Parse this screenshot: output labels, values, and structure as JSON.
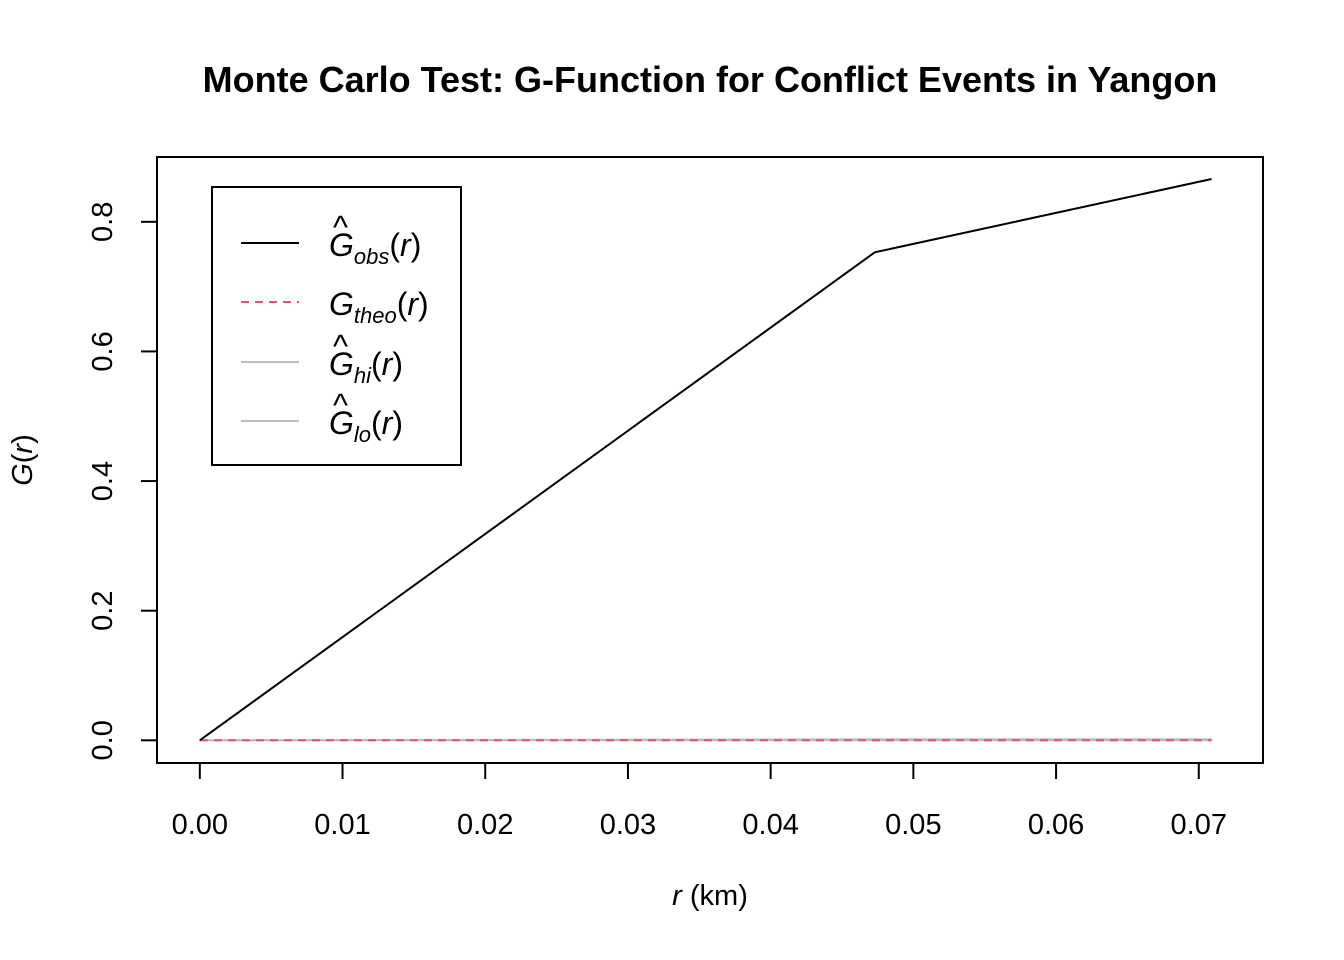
{
  "chart_data": {
    "type": "line",
    "title": "Monte Carlo Test: G-Function for Conflict Events in Yangon",
    "xlabel": {
      "var": "r",
      "unit": "(km)"
    },
    "ylabel": {
      "func": "G",
      "arg": "r"
    },
    "xlim": [
      -0.003,
      0.0745
    ],
    "ylim": [
      -0.035,
      0.9
    ],
    "x_ticks": [
      0.0,
      0.01,
      0.02,
      0.03,
      0.04,
      0.05,
      0.06,
      0.07
    ],
    "x_tick_labels": [
      "0.00",
      "0.01",
      "0.02",
      "0.03",
      "0.04",
      "0.05",
      "0.06",
      "0.07"
    ],
    "y_ticks": [
      0.0,
      0.2,
      0.4,
      0.6,
      0.8
    ],
    "y_tick_labels": [
      "0.0",
      "0.2",
      "0.4",
      "0.6",
      "0.8"
    ],
    "grid": false,
    "legend_position": "top-left",
    "series": [
      {
        "key": "obs",
        "sym": "G",
        "hat": true,
        "sub": "obs",
        "arg": "r",
        "color": "#000000",
        "dash": "solid",
        "x": [
          0.0,
          0.0473,
          0.0709
        ],
        "y": [
          0.0,
          0.753,
          0.866
        ]
      },
      {
        "key": "theo",
        "sym": "G",
        "hat": false,
        "sub": "theo",
        "arg": "r",
        "color": "#DF536B",
        "dash": "dashed",
        "x": [
          0.0,
          0.0473,
          0.0709
        ],
        "y": [
          0.0,
          0.0,
          0.0
        ]
      },
      {
        "key": "hi",
        "sym": "G",
        "hat": true,
        "sub": "hi",
        "arg": "r",
        "color": "#BEBEBE",
        "dash": "solid",
        "x": [
          0.0,
          0.0473,
          0.0709
        ],
        "y": [
          0.0,
          0.0015,
          0.0015
        ]
      },
      {
        "key": "lo",
        "sym": "G",
        "hat": true,
        "sub": "lo",
        "arg": "r",
        "color": "#BEBEBE",
        "dash": "solid",
        "x": [
          0.0,
          0.0473,
          0.0709
        ],
        "y": [
          0.0,
          0.0,
          0.0
        ]
      }
    ]
  }
}
